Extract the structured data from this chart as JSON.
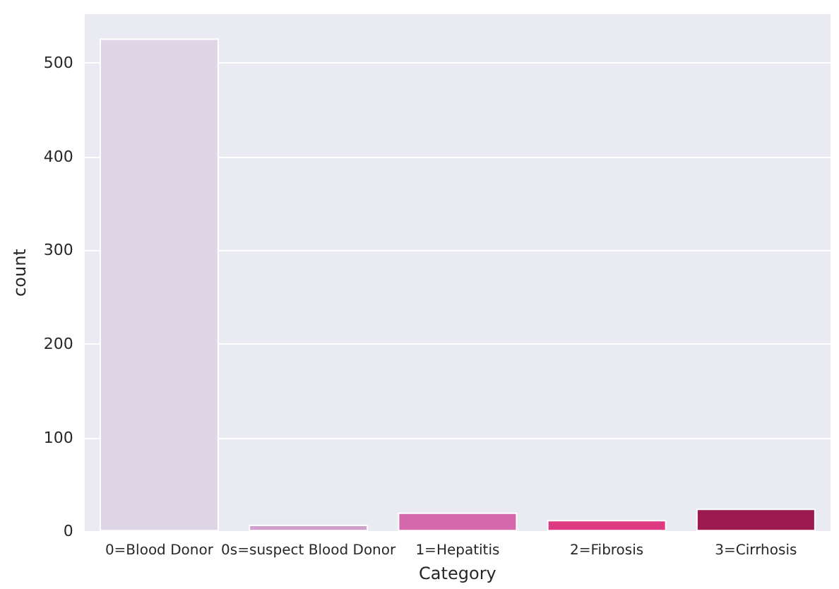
{
  "chart_data": {
    "type": "bar",
    "xlabel": "Category",
    "ylabel": "count",
    "categories": [
      "0=Blood Donor",
      "0s=suspect Blood Donor",
      "1=Hepatitis",
      "2=Fibrosis",
      "3=Cirrhosis"
    ],
    "values": [
      526,
      7,
      20,
      12,
      24
    ],
    "colors": [
      "#ded5e7",
      "#cfa0cb",
      "#d468ab",
      "#dd3a82",
      "#9c1a4f"
    ],
    "ylim": [
      0,
      552
    ],
    "yticks": [
      0,
      100,
      200,
      300,
      400,
      500
    ],
    "grid": "y"
  }
}
